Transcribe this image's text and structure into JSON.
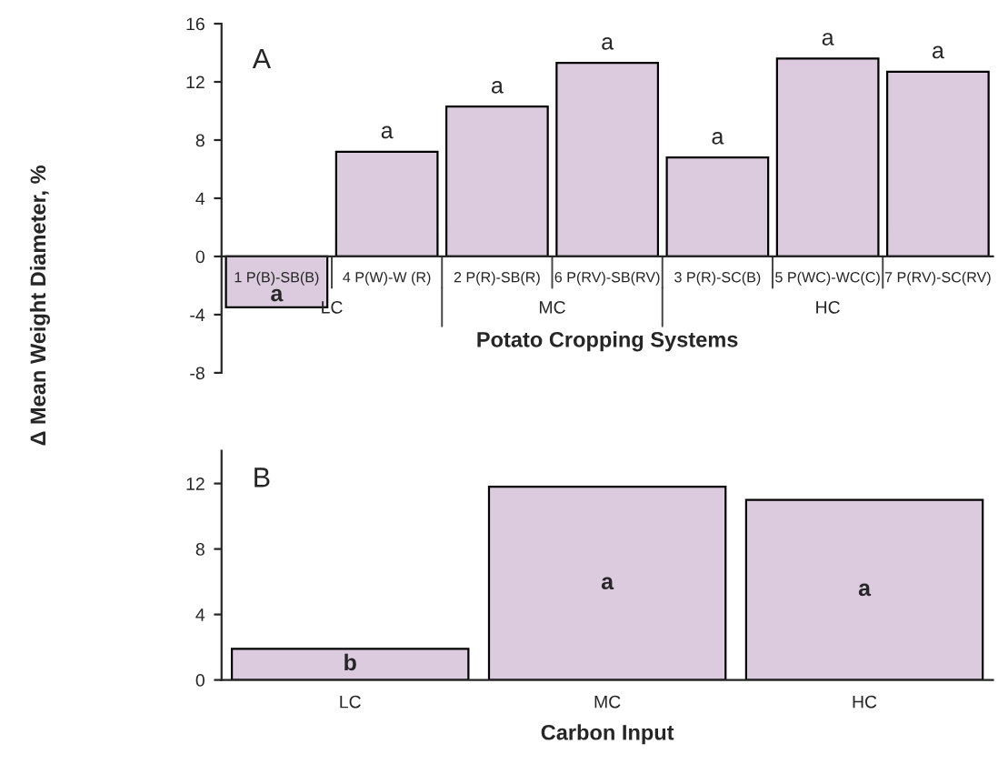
{
  "chart_data": [
    {
      "type": "bar",
      "title": "A",
      "ylabel": "Δ Mean Weight Diameter, %",
      "xlabel": "Potato Cropping Systems",
      "categories": [
        "1 P(B)-SB(B)",
        "4 P(W)-W (R)",
        "2 P(R)-SB(R)",
        "6 P(RV)-SB(RV)",
        "3 P(R)-SC(B)",
        "5 P(WC)-WC(C)",
        "7 P(RV)-SC(RV)"
      ],
      "values": [
        -3.5,
        7.2,
        10.3,
        13.3,
        6.8,
        13.6,
        12.7
      ],
      "color": "#dccbdf",
      "value_labels": [
        "a",
        "a",
        "a",
        "a",
        "a",
        "a",
        "a"
      ],
      "annotations": [
        "LC",
        "MC",
        "HC"
      ],
      "ylim": [
        -8,
        16
      ],
      "yticks": [
        -8,
        -4,
        0,
        4,
        8,
        12,
        16
      ],
      "grid": false,
      "legend": false
    },
    {
      "type": "bar",
      "title": "B",
      "xlabel": "Carbon Input",
      "categories": [
        "LC",
        "MC",
        "HC"
      ],
      "values": [
        1.9,
        11.8,
        11.0
      ],
      "color": "#dccbdf",
      "value_labels": [
        "b",
        "a",
        "a"
      ],
      "ylim": [
        0,
        14
      ],
      "yticks": [
        0,
        4,
        8,
        12
      ],
      "grid": false,
      "legend": false
    }
  ]
}
